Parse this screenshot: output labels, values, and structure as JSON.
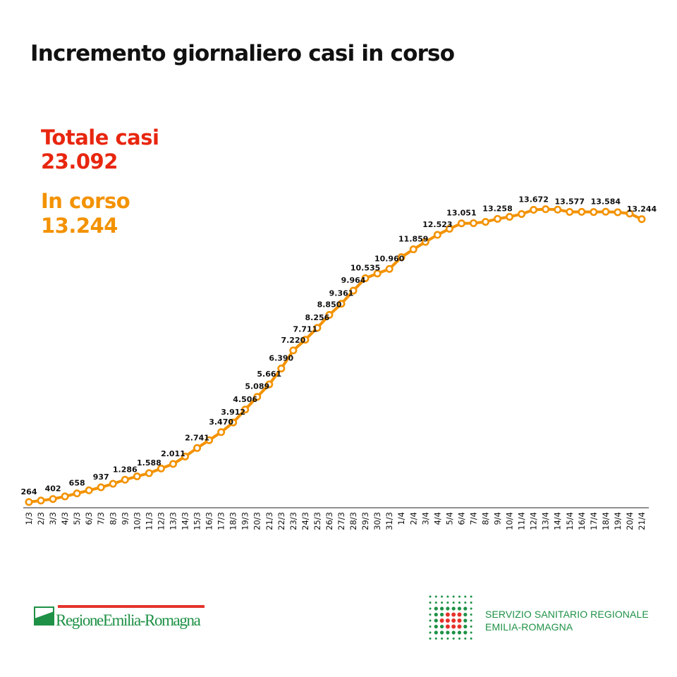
{
  "title": "Incremento giornaliero casi in corso",
  "totale": {
    "label": "Totale casi",
    "value": "23.092",
    "color": "#e8260f"
  },
  "in_corso": {
    "label": "In corso",
    "value": "13.244",
    "color": "#f39200"
  },
  "logos": {
    "left": "RegioneEmilia-Romagna",
    "right_line1": "SERVIZIO SANITARIO REGIONALE",
    "right_line2": "EMILIA-ROMAGNA"
  },
  "chart_data": {
    "type": "line",
    "title": "Incremento giornaliero casi in corso",
    "xlabel": "",
    "ylabel": "",
    "ylim": [
      0,
      14000
    ],
    "grid": false,
    "color": "#f39200",
    "x": [
      "1/3",
      "2/3",
      "3/3",
      "4/3",
      "5/3",
      "6/3",
      "7/3",
      "8/3",
      "9/3",
      "10/3",
      "11/3",
      "12/3",
      "13/3",
      "14/3",
      "15/3",
      "16/3",
      "17/3",
      "18/3",
      "19/3",
      "20/3",
      "21/3",
      "22/3",
      "23/3",
      "24/3",
      "25/3",
      "26/3",
      "27/3",
      "28/3",
      "29/3",
      "30/3",
      "31/3",
      "1/4",
      "2/4",
      "3/4",
      "4/4",
      "5/4",
      "6/4",
      "7/4",
      "8/4",
      "9/4",
      "10/4",
      "11/4",
      "12/4",
      "13/4",
      "14/4",
      "15/4",
      "16/4",
      "17/4",
      "18/4",
      "19/4",
      "20/4",
      "21/4"
    ],
    "values": [
      264,
      330,
      402,
      520,
      658,
      800,
      937,
      1100,
      1286,
      1440,
      1588,
      1800,
      2011,
      2350,
      2741,
      3100,
      3470,
      3912,
      4506,
      5089,
      5661,
      6390,
      7220,
      7711,
      8256,
      8850,
      9361,
      9964,
      10535,
      10750,
      10960,
      11500,
      11859,
      12200,
      12523,
      12800,
      13051,
      13060,
      13120,
      13258,
      13350,
      13480,
      13672,
      13700,
      13680,
      13577,
      13580,
      13570,
      13584,
      13560,
      13500,
      13244
    ],
    "data_labels": {
      "0": "264",
      "2": "402",
      "4": "658",
      "6": "937",
      "8": "1.286",
      "10": "1.588",
      "12": "2.011",
      "14": "2.741",
      "16": "3.470",
      "17": "3.912",
      "18": "4.506",
      "19": "5.089",
      "20": "5.661",
      "21": "6.390",
      "22": "7.220",
      "23": "7.711",
      "24": "8.256",
      "25": "8.850",
      "26": "9.361",
      "27": "9.964",
      "28": "10.535",
      "30": "10.960",
      "32": "11.859",
      "34": "12.523",
      "36": "13.051",
      "39": "13.258",
      "42": "13.672",
      "45": "13.577",
      "48": "13.584",
      "51": "13.244"
    }
  }
}
